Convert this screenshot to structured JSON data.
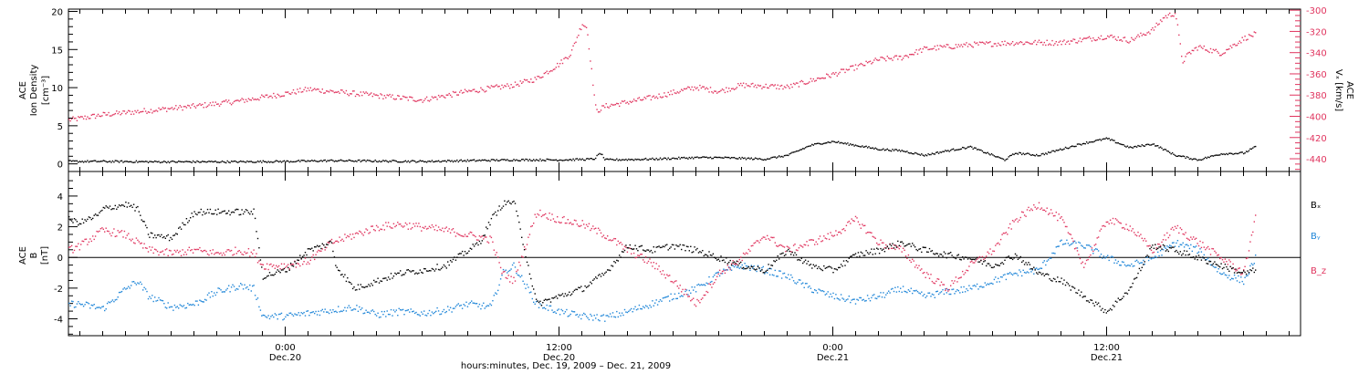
{
  "colors": {
    "black": "#000000",
    "pink": "#e0355f",
    "blue": "#1f86d8"
  },
  "x_axis": {
    "ticks": [
      {
        "time": "0:00",
        "date": "Dec.20"
      },
      {
        "time": "12:00",
        "date": "Dec.20"
      },
      {
        "time": "0:00",
        "date": "Dec.21"
      },
      {
        "time": "12:00",
        "date": "Dec.21"
      }
    ],
    "title": "hours:minutes, Dec. 19, 2009 – Dec. 21, 2009"
  },
  "chart_data": [
    {
      "type": "scatter",
      "x_unit": "hours since 2009-12-19 00:00",
      "xlim": [
        14.5,
        68.5
      ],
      "ylabel_left": {
        "line1": "ACE",
        "line2": "Ion Density",
        "line3": "[cm⁻³]"
      },
      "ylabel_right": {
        "line1": "ACE",
        "line2": "Vₓ [km/s]"
      },
      "ylim_left": [
        -1,
        20.3
      ],
      "ylim_right": [
        -452,
        -299
      ],
      "left_ticks": [
        "0",
        "5",
        "10",
        "15",
        "20"
      ],
      "right_ticks": [
        "-300",
        "-320",
        "-340",
        "-360",
        "-380",
        "-400",
        "-420",
        "-440"
      ],
      "series": [
        {
          "name": "Ion Density",
          "color": "#000000",
          "axis": "left",
          "x": [
            14.5,
            16,
            18,
            20,
            22,
            24,
            26,
            28,
            30,
            32,
            34,
            36,
            37.5,
            37.8,
            38,
            40,
            42,
            43,
            44,
            45,
            46,
            47,
            47.5,
            48,
            49,
            50,
            51,
            52,
            53,
            54,
            55,
            55.5,
            56,
            57,
            58,
            59,
            60,
            61,
            62,
            63,
            64,
            65,
            66,
            66.5
          ],
          "y": [
            0.4,
            0.4,
            0.35,
            0.35,
            0.35,
            0.4,
            0.5,
            0.45,
            0.4,
            0.5,
            0.6,
            0.6,
            0.7,
            1.5,
            0.6,
            0.7,
            0.9,
            0.9,
            0.8,
            0.7,
            1.2,
            2.5,
            2.8,
            3.0,
            2.5,
            2.0,
            1.8,
            1.2,
            1.8,
            2.3,
            1.2,
            0.6,
            1.5,
            1.2,
            2.0,
            2.8,
            3.4,
            2.2,
            2.7,
            1.2,
            0.6,
            1.4,
            1.5,
            2.3
          ]
        },
        {
          "name": "Vx",
          "color": "#e0355f",
          "axis": "right",
          "x": [
            14.5,
            16,
            18,
            20,
            22,
            24,
            25,
            26,
            28,
            30,
            32,
            34,
            35,
            36,
            36.5,
            37,
            37.2,
            37.6,
            38,
            40,
            42,
            43,
            44,
            46,
            48,
            50,
            51,
            52,
            54,
            55,
            56,
            58,
            60,
            61,
            62,
            62.5,
            63,
            63.3,
            63.6,
            64,
            65,
            66,
            66.5
          ],
          "y": [
            -403,
            -398,
            -394,
            -390,
            -385,
            -378,
            -374,
            -376,
            -380,
            -384,
            -376,
            -370,
            -364,
            -350,
            -340,
            -312,
            -316,
            -395,
            -390,
            -382,
            -372,
            -376,
            -370,
            -372,
            -360,
            -346,
            -344,
            -336,
            -332,
            -331,
            -330,
            -330,
            -324,
            -328,
            -318,
            -306,
            -302,
            -348,
            -340,
            -334,
            -340,
            -326,
            -322
          ]
        }
      ]
    },
    {
      "type": "scatter",
      "x_unit": "hours since 2009-12-19 00:00",
      "xlim": [
        14.5,
        68.5
      ],
      "ylabel": {
        "line1": "ACE",
        "line2": "B",
        "line3": "[nT]"
      },
      "ylim": [
        -5.1,
        5.6
      ],
      "ticks": [
        "4",
        "2",
        "0",
        "-2",
        "-4"
      ],
      "legend": [
        "Bₓ",
        "Bᵧ",
        "B_z"
      ],
      "series": [
        {
          "name": "Bx",
          "color": "#000000",
          "x": [
            14.5,
            15,
            15.8,
            16,
            17,
            17.5,
            18,
            19,
            20,
            21,
            22,
            22.6,
            23,
            23.5,
            24,
            25,
            26,
            26.2,
            27,
            28,
            29,
            30,
            31,
            32,
            32.5,
            33,
            33.5,
            34,
            35,
            36,
            37,
            38,
            39,
            40,
            41,
            42,
            43,
            44,
            45,
            46,
            47,
            48,
            49,
            50,
            51,
            52,
            53,
            54,
            55,
            56,
            57,
            58,
            59,
            60,
            61,
            62,
            63,
            64,
            65,
            66,
            66.5
          ],
          "y": [
            2.5,
            2.3,
            2.8,
            3.2,
            3.5,
            3.2,
            1.5,
            1.3,
            3.0,
            3.0,
            3.0,
            3.0,
            -1.2,
            -1.0,
            -0.8,
            0.5,
            1.0,
            -0.5,
            -2.0,
            -1.5,
            -1.0,
            -0.8,
            -0.5,
            0.5,
            1.0,
            2.5,
            3.5,
            3.7,
            -3.0,
            -2.5,
            -2.0,
            -1.0,
            0.8,
            0.5,
            0.8,
            0.5,
            0.0,
            -0.5,
            -0.8,
            0.5,
            -0.5,
            -0.8,
            0.2,
            0.5,
            1.0,
            0.5,
            0.2,
            0.0,
            -0.5,
            0.2,
            -1.0,
            -1.5,
            -2.5,
            -3.5,
            -2.0,
            0.8,
            0.5,
            0.0,
            -0.5,
            -1.0,
            -0.8
          ]
        },
        {
          "name": "By",
          "color": "#1f86d8",
          "x": [
            14.5,
            15,
            16,
            17,
            17.5,
            18,
            19,
            20,
            21,
            22,
            22.6,
            23,
            24,
            25,
            26,
            27,
            28,
            29,
            30,
            31,
            32,
            33,
            33.5,
            34,
            35,
            36,
            37,
            38,
            39,
            40,
            41,
            42,
            43,
            44,
            45,
            46,
            47,
            48,
            49,
            50,
            51,
            52,
            53,
            54,
            55,
            56,
            57,
            58,
            59,
            60,
            61,
            62,
            63,
            64,
            65,
            66,
            66.5
          ],
          "y": [
            -3.0,
            -3.0,
            -3.3,
            -2.0,
            -1.5,
            -2.5,
            -3.2,
            -3.0,
            -2.2,
            -1.8,
            -2.0,
            -3.8,
            -3.8,
            -3.6,
            -3.4,
            -3.2,
            -3.7,
            -3.5,
            -3.6,
            -3.4,
            -3.0,
            -3.2,
            -1.0,
            -0.5,
            -3.0,
            -3.5,
            -3.8,
            -3.9,
            -3.5,
            -3.0,
            -2.5,
            -2.0,
            -1.0,
            -0.5,
            -0.8,
            -1.2,
            -2.0,
            -2.5,
            -2.8,
            -2.5,
            -2.0,
            -2.5,
            -2.2,
            -2.0,
            -1.5,
            -1.0,
            -0.8,
            1.0,
            0.8,
            0.0,
            -0.5,
            0.0,
            1.0,
            0.5,
            -1.0,
            -1.5,
            0.0
          ]
        },
        {
          "name": "Bz",
          "color": "#e0355f",
          "x": [
            14.5,
            15,
            16,
            17,
            18,
            19,
            20,
            21,
            22,
            22.6,
            23,
            24,
            25,
            26,
            27,
            28,
            29,
            30,
            31,
            32,
            33,
            33.5,
            34,
            35,
            36,
            37,
            38,
            39,
            40,
            41,
            42,
            43,
            44,
            45,
            46,
            47,
            48,
            49,
            50,
            51,
            52,
            53,
            54,
            55,
            56,
            57,
            58,
            59,
            60,
            61,
            62,
            63,
            64,
            65,
            66,
            66.5
          ],
          "y": [
            0.5,
            0.8,
            1.8,
            1.5,
            0.5,
            0.3,
            0.5,
            0.3,
            0.5,
            0.3,
            -0.5,
            -0.5,
            -0.2,
            1.0,
            1.5,
            2.0,
            2.2,
            2.0,
            1.8,
            1.5,
            1.2,
            -1.0,
            -1.5,
            3.0,
            2.5,
            2.2,
            1.5,
            0.5,
            -0.3,
            -1.5,
            -3.0,
            -1.0,
            0.0,
            1.5,
            0.5,
            1.0,
            1.5,
            2.5,
            1.0,
            0.5,
            -1.0,
            -2.0,
            -0.5,
            0.5,
            2.5,
            3.5,
            2.5,
            -0.5,
            2.5,
            2.0,
            0.5,
            2.0,
            1.0,
            0.0,
            -1.0,
            2.8
          ]
        }
      ]
    }
  ]
}
